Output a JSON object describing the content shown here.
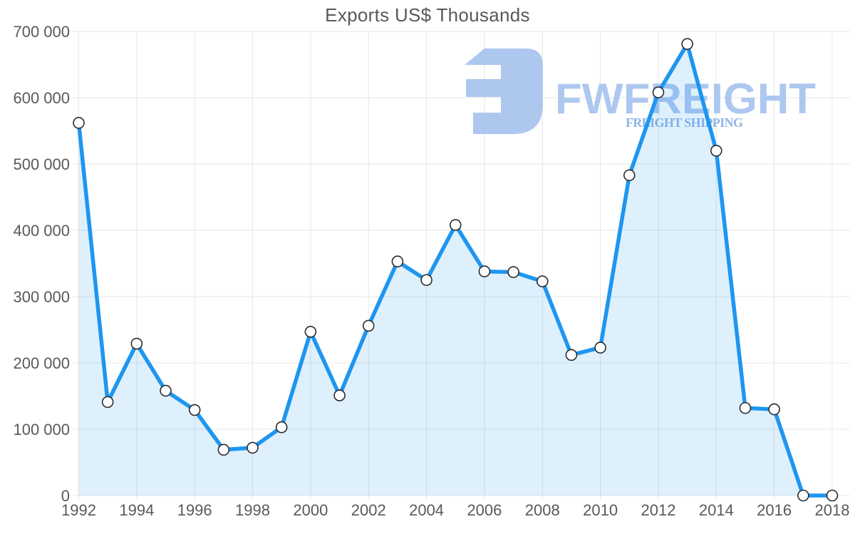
{
  "page": {
    "background": "#ffffff"
  },
  "chart_data": {
    "type": "area",
    "title": "Exports US$ Thousands",
    "xlabel": "",
    "ylabel": "",
    "x": [
      1992,
      1993,
      1994,
      1995,
      1996,
      1997,
      1998,
      1999,
      2000,
      2001,
      2002,
      2003,
      2004,
      2005,
      2006,
      2007,
      2008,
      2009,
      2010,
      2011,
      2012,
      2013,
      2014,
      2015,
      2016,
      2017,
      2018
    ],
    "series": [
      {
        "name": "Exports US$ Thousands",
        "values": [
          562000,
          141000,
          229000,
          158000,
          129000,
          69000,
          72000,
          103000,
          247000,
          151000,
          256000,
          353000,
          325000,
          408000,
          338000,
          337000,
          323000,
          212000,
          223000,
          483000,
          608000,
          681000,
          520000,
          132000,
          130000,
          0,
          0
        ]
      }
    ],
    "ylim": [
      0,
      700000
    ],
    "yticks": [
      0,
      100000,
      200000,
      300000,
      400000,
      500000,
      600000,
      700000
    ],
    "ytick_labels": [
      "0",
      "100 000",
      "200 000",
      "300 000",
      "400 000",
      "500 000",
      "600 000",
      "700 000"
    ],
    "xticks": [
      1992,
      1994,
      1996,
      1998,
      2000,
      2002,
      2004,
      2006,
      2008,
      2010,
      2012,
      2014,
      2016,
      2018
    ],
    "grid": true,
    "legend": false,
    "marker": "circle",
    "colors": {
      "line": "#1e96f0",
      "area_fill": "#1e96f0",
      "area_opacity": 0.14,
      "marker_fill": "#ffffff",
      "marker_stroke": "#2b2b2b",
      "grid": "#e7e7e7",
      "tick_text": "#595959",
      "title_text": "#595959"
    }
  },
  "watermark": {
    "brand": "FWFREIGHT",
    "subtitle": "FREIGHT SHIPPING",
    "colors": {
      "mark": "#a9c4ee",
      "brand": "#a9c6f0",
      "subtitle": "#8bb0e4"
    }
  }
}
